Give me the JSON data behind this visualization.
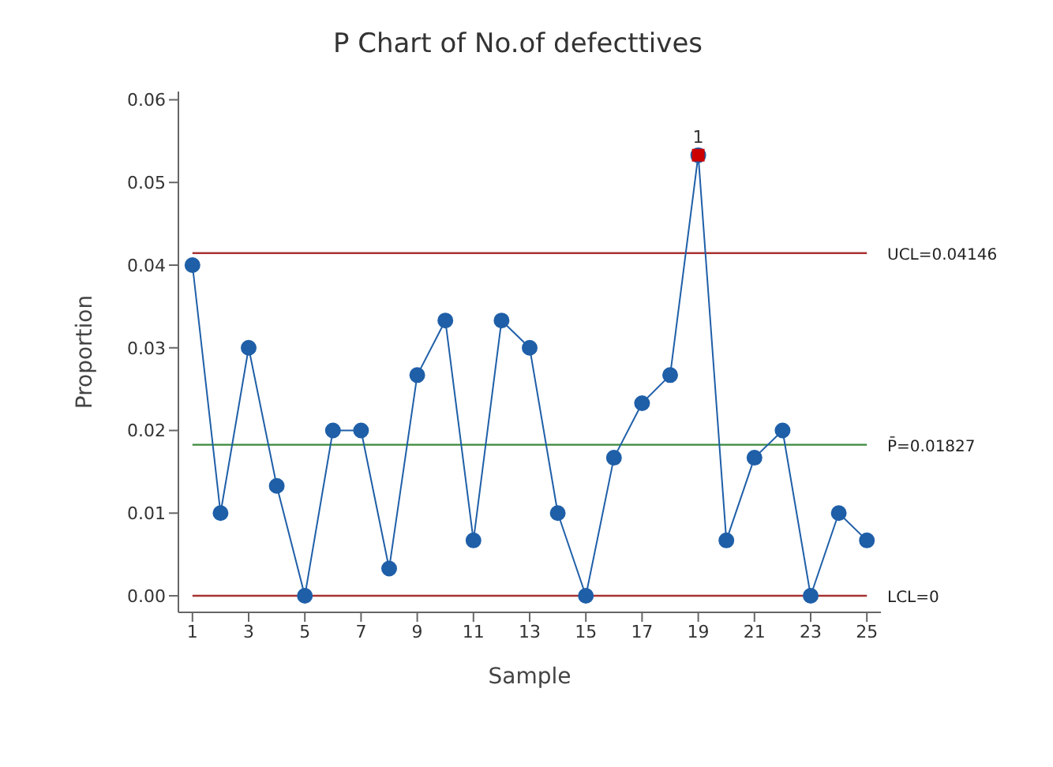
{
  "chart_data": {
    "type": "line",
    "title": "P Chart of No.of defecttives",
    "xlabel": "Sample",
    "ylabel": "Proportion",
    "x": [
      1,
      2,
      3,
      4,
      5,
      6,
      7,
      8,
      9,
      10,
      11,
      12,
      13,
      14,
      15,
      16,
      17,
      18,
      19,
      20,
      21,
      22,
      23,
      24,
      25
    ],
    "series": [
      {
        "type": "line",
        "color": "#1f5fa8",
        "marker": "circle",
        "values": [
          0.04,
          0.01,
          0.03,
          0.0133,
          0,
          0.02,
          0.02,
          0.0033,
          0.0267,
          0.0333,
          0.0067,
          0.0333,
          0.03,
          0.01,
          0,
          0.0167,
          0.0233,
          0.0267,
          0.0533,
          0.0067,
          0.0167,
          0.02,
          0,
          0.01,
          0.0067
        ]
      },
      {
        "type": "scatter",
        "color": "#cc0000",
        "marker": "square",
        "values": [
          null,
          null,
          null,
          null,
          null,
          null,
          null,
          null,
          null,
          null,
          null,
          null,
          null,
          null,
          null,
          null,
          null,
          null,
          0.0533,
          null,
          null,
          null,
          null,
          null,
          null
        ]
      }
    ],
    "xlim": [
      0.5,
      25.5
    ],
    "xticks": [
      1,
      3,
      5,
      7,
      9,
      11,
      13,
      15,
      17,
      19,
      21,
      23,
      25
    ],
    "ylim": [
      -0.002,
      0.061
    ],
    "yticks": [
      {
        "value": 0,
        "label": "0.00"
      },
      {
        "value": 0.01,
        "label": "0.01"
      },
      {
        "value": 0.02,
        "label": "0.02"
      },
      {
        "value": 0.03,
        "label": "0.03"
      },
      {
        "value": 0.04,
        "label": "0.04"
      },
      {
        "value": 0.05,
        "label": "0.05"
      },
      {
        "value": 0.06,
        "label": "0.06"
      }
    ],
    "ref_lines": [
      {
        "axis": "y",
        "value": 0.04146,
        "label": "UCL=0.04146",
        "color": "#a83232"
      },
      {
        "axis": "y",
        "value": 0.01827,
        "label": "P̄=0.01827",
        "color": "#3a8a3a"
      },
      {
        "axis": "y",
        "value": 0,
        "label": "LCL=0",
        "color": "#a83232"
      }
    ],
    "annotations": [
      {
        "text": "1",
        "x": 19,
        "y": 0.0533
      }
    ],
    "grid": false,
    "legend": false
  }
}
